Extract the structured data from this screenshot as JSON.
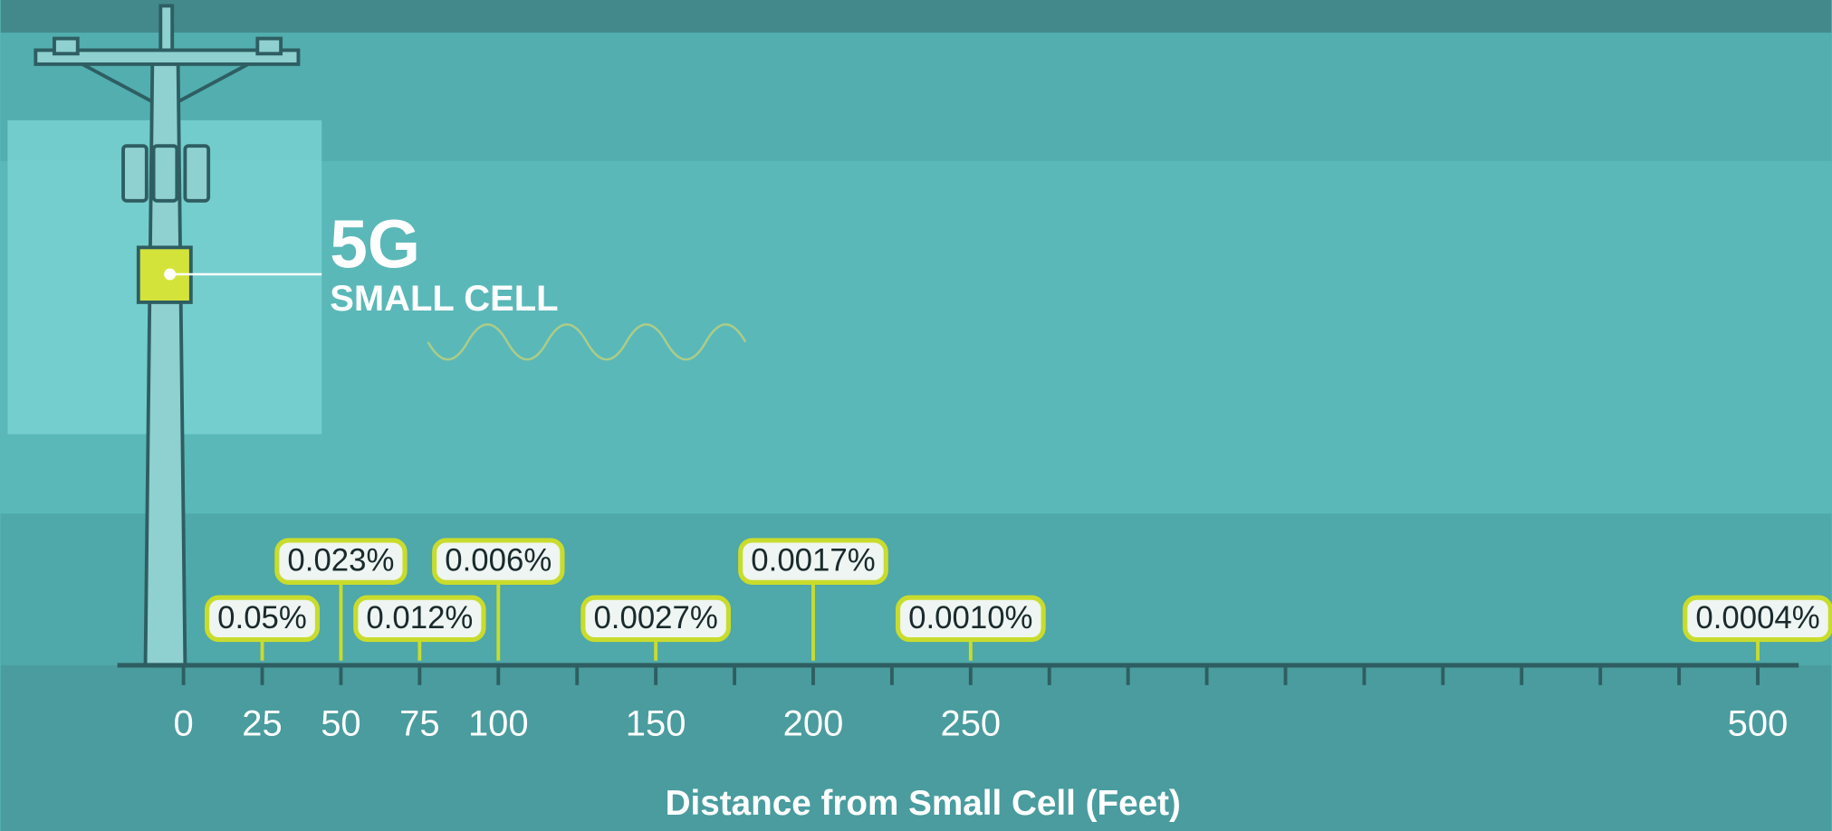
{
  "chart_data": {
    "type": "annotated-axis",
    "title": "5G",
    "subtitle": "SMALL CELL",
    "x_label": "Distance from Small Cell (Feet)",
    "x": [
      25,
      50,
      75,
      100,
      150,
      200,
      250,
      500
    ],
    "values": [
      0.05,
      0.023,
      0.012,
      0.006,
      0.0027,
      0.0017,
      0.001,
      0.0004
    ],
    "value_labels": [
      "0.05%",
      "0.023%",
      "0.012%",
      "0.006%",
      "0.0027%",
      "0.0017%",
      "0.0010%",
      "0.0004%"
    ],
    "xlim": [
      -21,
      513
    ],
    "xticks": [
      0,
      25,
      50,
      75,
      100,
      150,
      200,
      250,
      500
    ],
    "xminorticks": [
      125,
      175,
      225,
      275,
      300,
      325,
      350,
      375,
      400,
      425,
      450,
      475
    ],
    "color": "#c9dc2c"
  }
}
